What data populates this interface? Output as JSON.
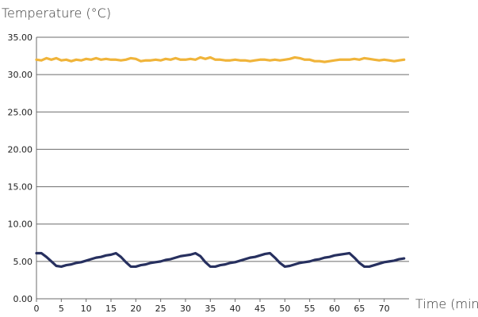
{
  "chart_data": {
    "type": "line",
    "title": "",
    "ylabel": "Temperature (°C)",
    "xlabel": "Time (min)",
    "xlim": [
      0,
      75
    ],
    "ylim": [
      0,
      35
    ],
    "grid": true,
    "x_ticks": [
      0,
      5,
      10,
      15,
      20,
      25,
      30,
      35,
      40,
      45,
      50,
      55,
      60,
      65,
      70
    ],
    "y_ticks": [
      "0.00",
      "5.00",
      "10.00",
      "15.00",
      "20.00",
      "25.00",
      "30.00",
      "35.00"
    ],
    "series": [
      {
        "color": "#f0b43a",
        "x": [
          0,
          1,
          2,
          3,
          4,
          5,
          6,
          7,
          8,
          9,
          10,
          11,
          12,
          13,
          14,
          15,
          16,
          17,
          18,
          19,
          20,
          21,
          22,
          23,
          24,
          25,
          26,
          27,
          28,
          29,
          30,
          31,
          32,
          33,
          34,
          35,
          36,
          37,
          38,
          39,
          40,
          41,
          42,
          43,
          44,
          45,
          46,
          47,
          48,
          49,
          50,
          51,
          52,
          53,
          54,
          55,
          56,
          57,
          58,
          59,
          60,
          61,
          62,
          63,
          64,
          65,
          66,
          67,
          68,
          69,
          70,
          71,
          72,
          73,
          74
        ],
        "values": [
          32.0,
          31.9,
          32.2,
          32.0,
          32.2,
          31.9,
          32.0,
          31.8,
          32.0,
          31.9,
          32.1,
          32.0,
          32.2,
          32.0,
          32.1,
          32.0,
          32.0,
          31.9,
          32.0,
          32.2,
          32.1,
          31.8,
          31.9,
          31.9,
          32.0,
          31.9,
          32.1,
          32.0,
          32.2,
          32.0,
          32.0,
          32.1,
          32.0,
          32.3,
          32.1,
          32.3,
          32.0,
          32.0,
          31.9,
          31.9,
          32.0,
          31.9,
          31.9,
          31.8,
          31.9,
          32.0,
          32.0,
          31.9,
          32.0,
          31.9,
          32.0,
          32.1,
          32.3,
          32.2,
          32.0,
          32.0,
          31.8,
          31.8,
          31.7,
          31.8,
          31.9,
          32.0,
          32.0,
          32.0,
          32.1,
          32.0,
          32.2,
          32.1,
          32.0,
          31.9,
          32.0,
          31.9,
          31.8,
          31.9,
          32.0
        ]
      },
      {
        "color": "#27305f",
        "x": [
          0,
          1,
          2,
          3,
          4,
          5,
          6,
          7,
          8,
          9,
          10,
          11,
          12,
          13,
          14,
          15,
          16,
          17,
          18,
          19,
          20,
          21,
          22,
          23,
          24,
          25,
          26,
          27,
          28,
          29,
          30,
          31,
          32,
          33,
          34,
          35,
          36,
          37,
          38,
          39,
          40,
          41,
          42,
          43,
          44,
          45,
          46,
          47,
          48,
          49,
          50,
          51,
          52,
          53,
          54,
          55,
          56,
          57,
          58,
          59,
          60,
          61,
          62,
          63,
          64,
          65,
          66,
          67,
          68,
          69,
          70,
          71,
          72,
          73,
          74
        ],
        "values": [
          6.1,
          6.1,
          5.6,
          5.0,
          4.4,
          4.3,
          4.5,
          4.6,
          4.8,
          4.9,
          5.1,
          5.3,
          5.5,
          5.6,
          5.8,
          5.9,
          6.1,
          5.6,
          4.9,
          4.3,
          4.3,
          4.5,
          4.6,
          4.8,
          4.9,
          5.0,
          5.2,
          5.3,
          5.5,
          5.7,
          5.8,
          5.9,
          6.1,
          5.7,
          4.9,
          4.3,
          4.3,
          4.5,
          4.6,
          4.8,
          4.9,
          5.1,
          5.3,
          5.5,
          5.6,
          5.8,
          6.0,
          6.1,
          5.5,
          4.8,
          4.3,
          4.4,
          4.6,
          4.8,
          4.9,
          5.0,
          5.2,
          5.3,
          5.5,
          5.6,
          5.8,
          5.9,
          6.0,
          6.1,
          5.5,
          4.8,
          4.3,
          4.3,
          4.5,
          4.7,
          4.9,
          5.0,
          5.1,
          5.3,
          5.4
        ]
      }
    ]
  }
}
